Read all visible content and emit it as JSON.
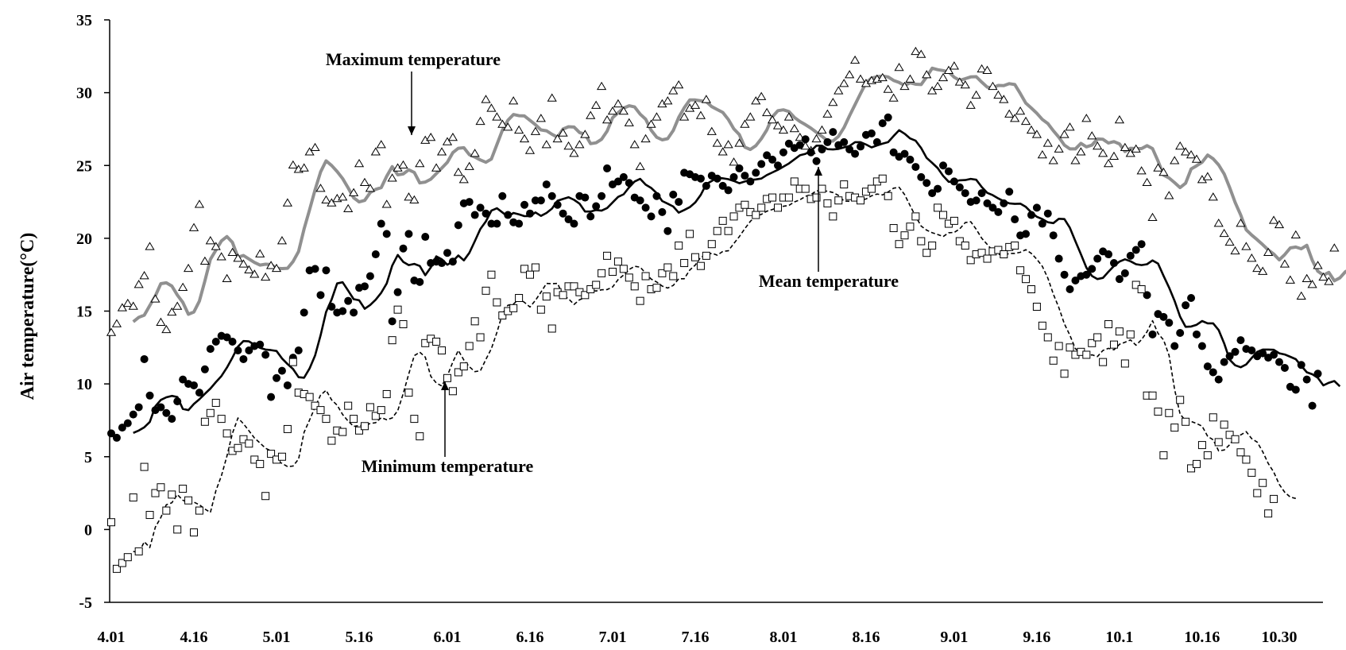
{
  "chart_data": {
    "type": "scatter",
    "title": "",
    "xlabel": "",
    "ylabel": "Air temperature(°C)",
    "ylim": [
      -5,
      35
    ],
    "yticks": [
      -5,
      0,
      5,
      10,
      15,
      20,
      25,
      30,
      35
    ],
    "xlim": [
      0,
      212
    ],
    "xticks": [
      {
        "label": "4.01",
        "day": 0
      },
      {
        "label": "4.16",
        "day": 15
      },
      {
        "label": "5.01",
        "day": 30
      },
      {
        "label": "5.16",
        "day": 45
      },
      {
        "label": "6.01",
        "day": 61
      },
      {
        "label": "6.16",
        "day": 76
      },
      {
        "label": "7.01",
        "day": 91
      },
      {
        "label": "7.16",
        "day": 106
      },
      {
        "label": "8.01",
        "day": 122
      },
      {
        "label": "8.16",
        "day": 137
      },
      {
        "label": "9.01",
        "day": 153
      },
      {
        "label": "9.16",
        "day": 168
      },
      {
        "label": "10.1",
        "day": 183
      },
      {
        "label": "10.16",
        "day": 198
      },
      {
        "label": "10.30",
        "day": 212
      }
    ],
    "grid": false,
    "annotations": [
      {
        "text": "Maximum temperature",
        "arrow_day": 53,
        "arrow_value": 27
      },
      {
        "text": "Mean temperature",
        "arrow_day": 137,
        "arrow_value": 25.2
      },
      {
        "text": "Minimum temperature",
        "arrow_day": 61,
        "arrow_value": 12
      }
    ],
    "series": [
      {
        "name": "Maximum temperature",
        "marker": "triangle-open",
        "trend_style": "solid-gray",
        "color": "#909090",
        "values": [
          13.5,
          14.1,
          15.2,
          15.5,
          15.3,
          16.8,
          17.4,
          19.4,
          15.8,
          14.2,
          13.7,
          14.9,
          15.3,
          16.6,
          17.9,
          20.7,
          22.3,
          18.4,
          19.8,
          19.4,
          18.7,
          17.2,
          19.0,
          18.6,
          18.2,
          17.8,
          17.5,
          18.9,
          17.3,
          18.1,
          17.9,
          19.8,
          22.4,
          25.0,
          24.7,
          24.8,
          25.9,
          26.2,
          23.4,
          22.6,
          22.4,
          22.7,
          22.8,
          22.0,
          23.1,
          25.1,
          23.8,
          23.4,
          25.9,
          26.4,
          22.3,
          24.1,
          24.8,
          25.0,
          22.8,
          22.6,
          25.1,
          26.7,
          26.9,
          24.8,
          25.9,
          26.6,
          26.9,
          24.5,
          24.0,
          24.9,
          25.8,
          28.0,
          29.5,
          28.9,
          28.3,
          27.8,
          27.6,
          29.4,
          27.4,
          26.8,
          26.0,
          27.3,
          28.2,
          26.4,
          29.6,
          26.8,
          27.2,
          26.3,
          25.8,
          26.4,
          27.1,
          28.4,
          29.1,
          30.4,
          28.1,
          28.7,
          29.2,
          28.7,
          27.9,
          26.4,
          24.9,
          26.8,
          27.8,
          28.3,
          29.2,
          29.4,
          30.1,
          30.5,
          28.3,
          28.9,
          29.1,
          28.4,
          29.5,
          27.3,
          26.5,
          25.9,
          26.4,
          25.2,
          26.5,
          27.8,
          28.3,
          29.4,
          29.7,
          28.6,
          28.1,
          27.7,
          27.4,
          28.3,
          27.5,
          26.9,
          26.3,
          26.0,
          26.8,
          27.4,
          28.5,
          29.3,
          30.1,
          30.6,
          31.2,
          32.2,
          30.9,
          30.6,
          30.8,
          30.9,
          31.0,
          30.2,
          29.6,
          31.7,
          30.4,
          30.9,
          32.8,
          32.6,
          31.2,
          30.1,
          30.4,
          31.0,
          31.5,
          31.8,
          30.7,
          30.5,
          29.1,
          29.8,
          31.6,
          31.5,
          30.4,
          29.8,
          29.5,
          28.5,
          28.2,
          28.7,
          28.0,
          27.4,
          27.1,
          25.7,
          26.5,
          25.3,
          26.1,
          27.1,
          27.6,
          25.3,
          25.9,
          28.2,
          27.0,
          26.3,
          25.8,
          25.1,
          25.6,
          28.1,
          26.2,
          25.8,
          26.1,
          24.6,
          23.8,
          21.4,
          24.8,
          24.5,
          22.9,
          25.3,
          26.3,
          25.9,
          25.7,
          25.4,
          24.0,
          24.2,
          22.8,
          21.0,
          20.3,
          19.7,
          19.1,
          21.0,
          19.4,
          18.6,
          17.9,
          17.7,
          19.0,
          21.2,
          20.9,
          18.2,
          17.1,
          20.2,
          16.0,
          17.2,
          16.8,
          18.1,
          17.3,
          17.0,
          19.3
        ]
      },
      {
        "name": "Mean temperature",
        "marker": "circle-filled",
        "trend_style": "solid-black",
        "color": "#000000",
        "values": [
          6.6,
          6.3,
          7.0,
          7.3,
          7.9,
          8.4,
          11.7,
          9.2,
          8.2,
          8.4,
          8.0,
          7.6,
          8.8,
          10.3,
          10.0,
          9.9,
          9.4,
          11.0,
          12.4,
          12.9,
          13.3,
          13.2,
          12.9,
          12.3,
          11.7,
          12.3,
          12.6,
          12.7,
          12.0,
          9.1,
          10.4,
          10.9,
          9.9,
          11.8,
          12.3,
          14.9,
          17.8,
          17.9,
          16.1,
          17.8,
          15.3,
          14.9,
          15.0,
          15.7,
          14.9,
          16.6,
          16.7,
          17.4,
          18.9,
          21.0,
          20.3,
          14.3,
          16.3,
          19.3,
          20.3,
          17.1,
          17.0,
          20.1,
          18.3,
          18.4,
          18.3,
          19.0,
          18.4,
          20.9,
          22.4,
          22.5,
          21.6,
          22.1,
          21.7,
          21.0,
          21.0,
          22.9,
          21.6,
          21.1,
          21.0,
          22.3,
          21.7,
          22.6,
          22.6,
          23.7,
          22.9,
          22.3,
          21.7,
          21.3,
          21.0,
          22.9,
          22.8,
          21.5,
          22.2,
          22.9,
          24.8,
          23.7,
          23.9,
          24.2,
          23.8,
          22.8,
          22.6,
          22.1,
          21.5,
          22.9,
          21.8,
          20.5,
          23.0,
          22.5,
          24.5,
          24.4,
          24.2,
          24.1,
          23.6,
          24.3,
          24.1,
          23.6,
          23.3,
          24.2,
          24.8,
          24.3,
          23.9,
          24.5,
          25.1,
          25.7,
          25.4,
          25.0,
          25.9,
          26.5,
          26.2,
          26.4,
          26.8,
          25.9,
          25.3,
          26.1,
          26.6,
          27.3,
          26.4,
          26.6,
          26.1,
          25.8,
          26.3,
          27.1,
          27.2,
          26.6,
          27.9,
          28.3,
          25.9,
          25.6,
          25.8,
          25.4,
          24.9,
          24.2,
          23.8,
          23.1,
          23.4,
          25.0,
          24.6,
          23.9,
          23.5,
          23.1,
          22.5,
          22.6,
          23.1,
          22.4,
          22.1,
          21.8,
          22.4,
          23.2,
          21.3,
          20.2,
          20.3,
          21.6,
          22.1,
          21.0,
          21.7,
          20.2,
          18.6,
          17.5,
          16.5,
          17.1,
          17.4,
          17.5,
          17.9,
          18.6,
          19.1,
          18.9,
          18.3,
          17.2,
          17.6,
          18.8,
          19.2,
          19.6,
          16.1,
          13.4,
          14.8,
          14.6,
          14.2,
          12.6,
          13.5,
          15.4,
          15.9,
          13.4,
          12.6,
          11.2,
          10.8,
          10.3,
          11.5,
          11.9,
          12.2,
          13.0,
          12.4,
          12.3,
          11.9,
          12.1,
          11.8,
          12.0,
          11.5,
          11.1,
          9.8,
          9.6,
          11.3,
          10.3,
          8.5,
          10.7
        ]
      },
      {
        "name": "Minimum temperature",
        "marker": "square-open",
        "trend_style": "dashed-black",
        "color": "#000000",
        "values": [
          0.5,
          -2.7,
          -2.3,
          -1.9,
          2.2,
          -1.5,
          4.3,
          1.0,
          2.5,
          2.9,
          1.3,
          2.4,
          0.0,
          2.8,
          2.0,
          -0.2,
          1.3,
          7.4,
          8.0,
          8.7,
          7.6,
          6.6,
          5.4,
          5.6,
          6.2,
          5.9,
          4.8,
          4.5,
          2.3,
          5.2,
          4.8,
          5.0,
          6.9,
          11.5,
          9.4,
          9.3,
          9.1,
          8.5,
          8.2,
          7.6,
          6.1,
          6.8,
          6.7,
          8.5,
          7.6,
          6.8,
          7.1,
          8.4,
          7.8,
          8.2,
          9.3,
          13.0,
          15.1,
          14.1,
          9.4,
          7.6,
          6.4,
          12.8,
          13.1,
          12.9,
          12.3,
          10.4,
          9.5,
          10.8,
          11.2,
          12.6,
          14.3,
          13.2,
          16.4,
          17.5,
          15.6,
          14.7,
          15.0,
          15.2,
          15.9,
          17.9,
          17.5,
          18.0,
          15.1,
          16.0,
          13.8,
          16.3,
          16.1,
          16.7,
          16.7,
          16.3,
          16.1,
          16.5,
          16.8,
          17.6,
          18.8,
          17.7,
          18.4,
          17.9,
          17.3,
          16.7,
          15.7,
          17.4,
          16.5,
          16.6,
          17.6,
          18.0,
          17.4,
          19.5,
          18.3,
          20.3,
          18.7,
          18.1,
          18.8,
          19.6,
          20.5,
          21.2,
          20.5,
          21.5,
          22.1,
          22.3,
          21.8,
          21.6,
          22.1,
          22.7,
          22.8,
          22.1,
          22.8,
          22.8,
          23.9,
          23.4,
          23.4,
          22.7,
          22.8,
          23.4,
          22.4,
          21.5,
          22.6,
          23.7,
          22.9,
          22.8,
          22.6,
          23.2,
          23.4,
          23.9,
          24.1,
          22.9,
          20.7,
          19.6,
          20.2,
          20.8,
          21.5,
          19.8,
          19.0,
          19.5,
          22.1,
          21.6,
          21.0,
          21.2,
          19.8,
          19.5,
          18.5,
          18.9,
          19.0,
          18.6,
          19.1,
          19.2,
          18.9,
          19.4,
          19.5,
          17.8,
          17.2,
          16.5,
          15.3,
          14.0,
          13.2,
          11.6,
          12.6,
          10.7,
          12.5,
          12.0,
          12.2,
          12.0,
          12.8,
          13.2,
          11.5,
          14.1,
          12.7,
          13.6,
          11.4,
          13.4,
          16.8,
          16.5,
          9.2,
          9.2,
          8.1,
          5.1,
          8.0,
          7.0,
          8.9,
          7.4,
          4.2,
          4.5,
          5.8,
          5.1,
          7.7,
          6.0,
          7.2,
          6.5,
          6.2,
          5.3,
          4.8,
          3.9,
          2.5,
          3.2,
          1.1,
          2.1
        ]
      }
    ]
  }
}
